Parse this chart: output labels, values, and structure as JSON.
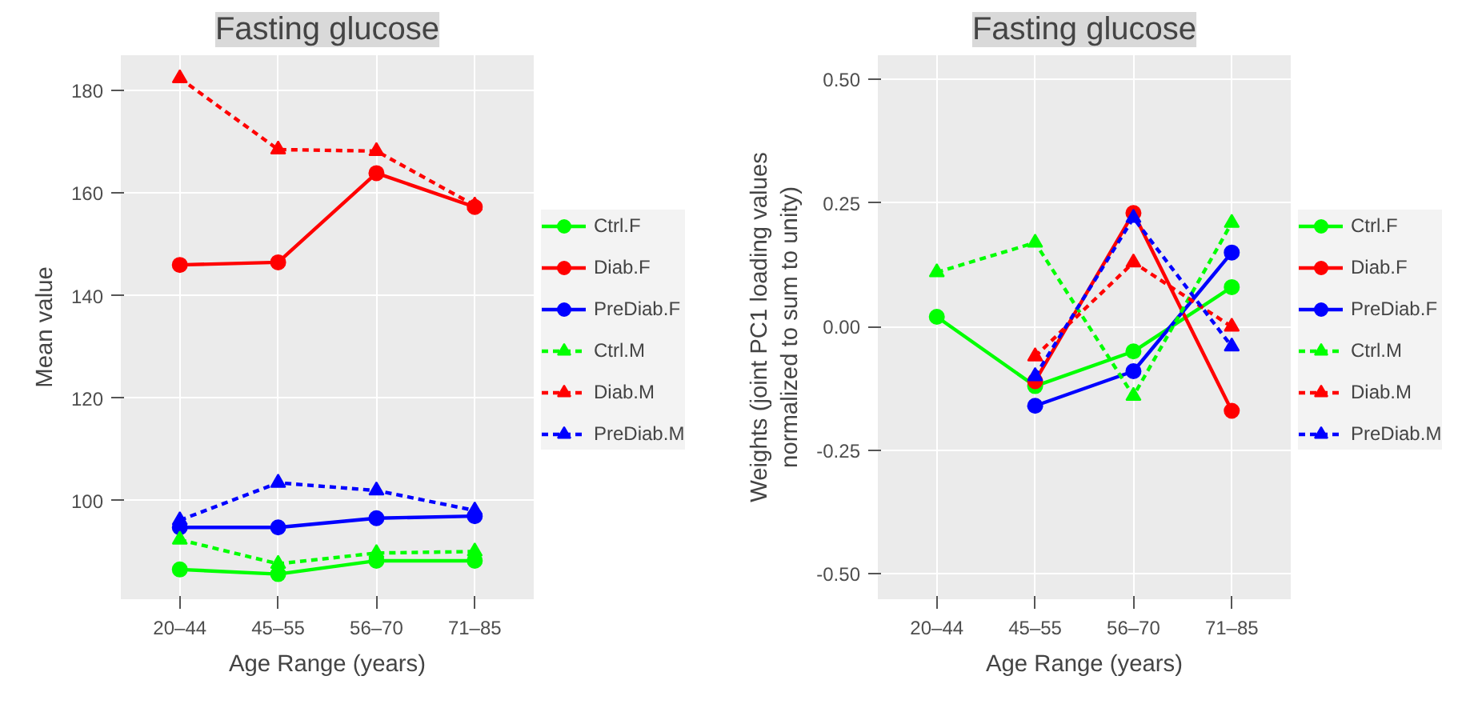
{
  "chart_data": [
    {
      "type": "line",
      "title": "Fasting glucose",
      "xlabel": "Age Range (years)",
      "ylabel": "Mean value",
      "categories": [
        "20–44",
        "45–55",
        "56–70",
        "71–85"
      ],
      "ylim": [
        80.8,
        186.9
      ],
      "yticks": [
        100,
        120,
        140,
        160,
        180
      ],
      "grid": true,
      "legend": "right",
      "series": [
        {
          "name": "Ctrl.F",
          "color": "#00ff00",
          "marker": "circle",
          "line_style": "solid",
          "values": [
            86.6,
            85.7,
            88.3,
            88.3
          ]
        },
        {
          "name": "Diab.F",
          "color": "#ff0000",
          "marker": "circle",
          "line_style": "solid",
          "values": [
            146.0,
            146.5,
            163.9,
            157.3
          ]
        },
        {
          "name": "PreDiab.F",
          "color": "#0000ff",
          "marker": "circle",
          "line_style": "solid",
          "values": [
            94.8,
            94.8,
            96.6,
            97.0
          ]
        },
        {
          "name": "Ctrl.M",
          "color": "#00ff00",
          "marker": "triangle",
          "line_style": "dashed",
          "values": [
            92.4,
            87.7,
            89.8,
            90.1
          ]
        },
        {
          "name": "Diab.M",
          "color": "#ff0000",
          "marker": "triangle",
          "line_style": "dashed",
          "values": [
            182.4,
            168.5,
            168.2,
            157.6
          ]
        },
        {
          "name": "PreDiab.M",
          "color": "#0000ff",
          "marker": "triangle",
          "line_style": "dashed",
          "values": [
            96.2,
            103.5,
            102.0,
            98.1
          ]
        }
      ]
    },
    {
      "type": "line",
      "title": "Fasting glucose",
      "xlabel": "Age Range (years)",
      "ylabel": "Weights (joint PC1 loading values\nnormalized to sum to unity)",
      "categories": [
        "20–44",
        "45–55",
        "56–70",
        "71–85"
      ],
      "ylim": [
        -0.551,
        0.549
      ],
      "yticks": [
        {
          "value": -0.5,
          "label": "-0.50"
        },
        {
          "value": -0.25,
          "label": "-0.25"
        },
        {
          "value": 0,
          "label": "0.00"
        },
        {
          "value": 0.25,
          "label": "0.25"
        },
        {
          "value": 0.5,
          "label": "0.50"
        }
      ],
      "grid": true,
      "legend": "right",
      "series": [
        {
          "name": "Ctrl.F",
          "color": "#00ff00",
          "marker": "circle",
          "line_style": "solid",
          "values": [
            0.02,
            -0.12,
            -0.05,
            0.08
          ]
        },
        {
          "name": "Diab.F",
          "color": "#ff0000",
          "marker": "circle",
          "line_style": "solid",
          "values": [
            null,
            -0.11,
            0.23,
            -0.17
          ]
        },
        {
          "name": "PreDiab.F",
          "color": "#0000ff",
          "marker": "circle",
          "line_style": "solid",
          "values": [
            null,
            -0.16,
            -0.09,
            0.15
          ]
        },
        {
          "name": "Ctrl.M",
          "color": "#00ff00",
          "marker": "triangle",
          "line_style": "dashed",
          "values": [
            0.11,
            0.17,
            -0.14,
            0.21
          ]
        },
        {
          "name": "Diab.M",
          "color": "#ff0000",
          "marker": "triangle",
          "line_style": "dashed",
          "values": [
            null,
            -0.06,
            0.13,
            0.0
          ]
        },
        {
          "name": "PreDiab.M",
          "color": "#0000ff",
          "marker": "triangle",
          "line_style": "dashed",
          "values": [
            null,
            -0.1,
            0.22,
            -0.04
          ]
        }
      ]
    }
  ]
}
